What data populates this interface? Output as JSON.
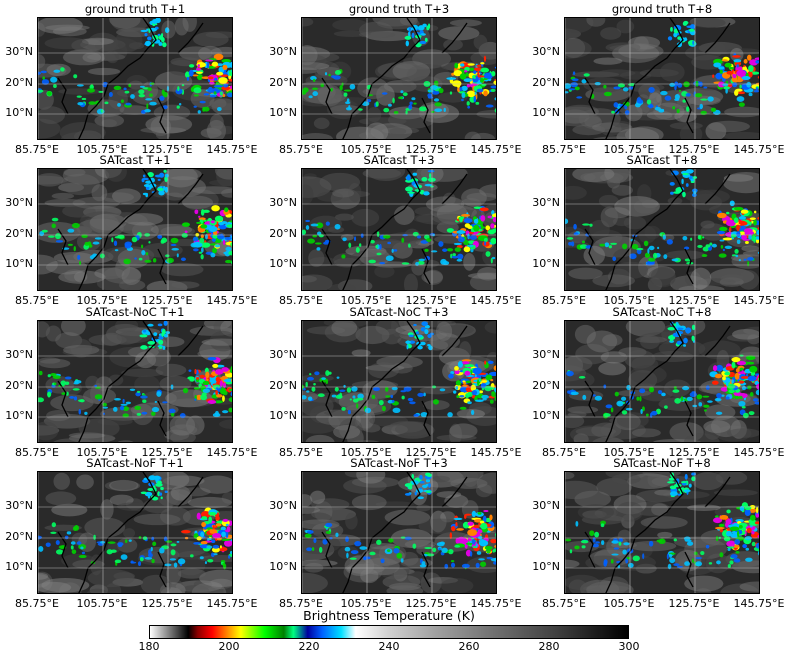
{
  "panels": [
    {
      "title": "ground truth T+1"
    },
    {
      "title": "ground truth T+3"
    },
    {
      "title": "ground truth T+8"
    },
    {
      "title": "SATcast T+1"
    },
    {
      "title": "SATcast T+3"
    },
    {
      "title": "SATcast T+8"
    },
    {
      "title": "SATcast-NoC T+1"
    },
    {
      "title": "SATcast-NoC T+3"
    },
    {
      "title": "SATcast-NoC T+8"
    },
    {
      "title": "SATcast-NoF T+1"
    },
    {
      "title": "SATcast-NoF T+3"
    },
    {
      "title": "SATcast-NoF T+8"
    }
  ],
  "axes": {
    "y_ticks": [
      "30°N",
      "20°N",
      "10°N"
    ],
    "x_ticks": [
      "85.75°E",
      "105.75°E",
      "125.75°E",
      "145.75°E"
    ]
  },
  "colorbar": {
    "label": "Brightness Temperature (K)",
    "ticks": [
      "180",
      "200",
      "220",
      "240",
      "260",
      "280",
      "300"
    ],
    "range": [
      180,
      300
    ]
  },
  "colors": {
    "cold_top": "#ff0000",
    "mid": "#00c000",
    "cyan": "#00e0ff",
    "warm": "#202020"
  }
}
